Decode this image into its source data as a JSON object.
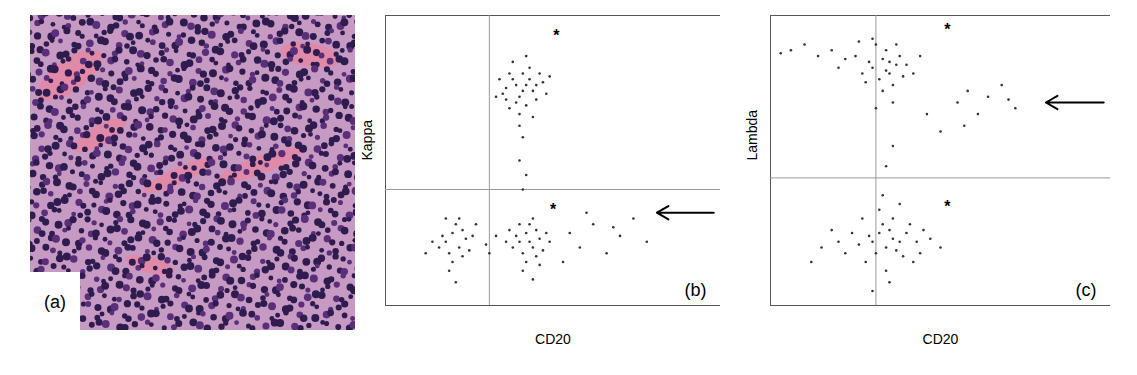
{
  "image_panel": {
    "label": "(a)"
  },
  "chart_data": [
    {
      "type": "scatter",
      "panel_label": "(b)",
      "xlabel": "CD20",
      "ylabel": "Kappa",
      "xlim": [
        0,
        100
      ],
      "ylim": [
        0,
        100
      ],
      "tick_labels": false,
      "color": "#333333",
      "quadrant": {
        "x": 31,
        "y": 40
      },
      "annotations": [
        {
          "text": "*",
          "x": 51,
          "y": 93
        },
        {
          "text": "*",
          "x": 50,
          "y": 33
        }
      ],
      "x": [
        36,
        38,
        40,
        42,
        44,
        39,
        41,
        37,
        43,
        45,
        35,
        47,
        40,
        42,
        38,
        46,
        34,
        44,
        48,
        41,
        39,
        43,
        36,
        45,
        40,
        42,
        37,
        49,
        33,
        41,
        40,
        42,
        41,
        18,
        20,
        22,
        24,
        19,
        21,
        23,
        17,
        25,
        20,
        16,
        22,
        26,
        14,
        19,
        23,
        12,
        21,
        27,
        18,
        40,
        42,
        44,
        46,
        41,
        43,
        45,
        39,
        47,
        42,
        38,
        44,
        48,
        36,
        41,
        45,
        43,
        40,
        46,
        49,
        37,
        44,
        30,
        33,
        31,
        55,
        58,
        62,
        66,
        70,
        74,
        78,
        60,
        53,
        68
      ],
      "values": [
        75,
        78,
        72,
        76,
        74,
        70,
        80,
        68,
        82,
        71,
        73,
        77,
        66,
        69,
        84,
        80,
        78,
        65,
        73,
        74,
        76,
        78,
        71,
        76,
        62,
        86,
        80,
        79,
        72,
        58,
        50,
        45,
        40,
        22,
        25,
        20,
        23,
        18,
        28,
        26,
        24,
        19,
        15,
        20,
        30,
        24,
        22,
        12,
        17,
        18,
        8,
        28,
        30,
        22,
        25,
        20,
        23,
        18,
        28,
        26,
        24,
        19,
        15,
        20,
        30,
        25,
        22,
        12,
        17,
        22,
        28,
        14,
        22,
        26,
        9,
        21,
        24,
        18,
        25,
        20,
        28,
        18,
        24,
        30,
        22,
        32,
        15,
        27
      ]
    },
    {
      "type": "scatter",
      "panel_label": "(c)",
      "xlabel": "CD20",
      "ylabel": "Lambda",
      "xlim": [
        0,
        100
      ],
      "ylim": [
        0,
        100
      ],
      "tick_labels": false,
      "color": "#333333",
      "quadrant": {
        "x": 31,
        "y": 44
      },
      "annotations": [
        {
          "text": "*",
          "x": 52,
          "y": 95
        },
        {
          "text": "*",
          "x": 52,
          "y": 34
        }
      ],
      "x": [
        30,
        33,
        35,
        37,
        32,
        34,
        36,
        29,
        38,
        31,
        27,
        35,
        39,
        25,
        33,
        37,
        28,
        40,
        30,
        34,
        22,
        18,
        14,
        10,
        6,
        3,
        42,
        44,
        36,
        31,
        26,
        20,
        30,
        32,
        34,
        36,
        31,
        33,
        35,
        29,
        37,
        38,
        40,
        39,
        41,
        28,
        34,
        36,
        26,
        24,
        22,
        20,
        18,
        15,
        43,
        45,
        42,
        44,
        32,
        38,
        27,
        35,
        30,
        47,
        50,
        12,
        33,
        55,
        58,
        61,
        64,
        68,
        72,
        57,
        70,
        50,
        46,
        36,
        34
      ],
      "values": [
        82,
        85,
        80,
        83,
        78,
        88,
        76,
        84,
        86,
        90,
        80,
        84,
        79,
        86,
        74,
        90,
        77,
        83,
        92,
        81,
        85,
        88,
        86,
        90,
        88,
        87,
        80,
        86,
        70,
        68,
        91,
        82,
        22,
        25,
        20,
        23,
        18,
        28,
        26,
        24,
        19,
        22,
        25,
        17,
        28,
        15,
        12,
        30,
        21,
        25,
        18,
        22,
        26,
        20,
        22,
        26,
        15,
        18,
        33,
        35,
        30,
        8,
        5,
        23,
        20,
        15,
        38,
        70,
        74,
        66,
        72,
        76,
        68,
        62,
        71,
        60,
        66,
        55,
        48
      ]
    }
  ]
}
